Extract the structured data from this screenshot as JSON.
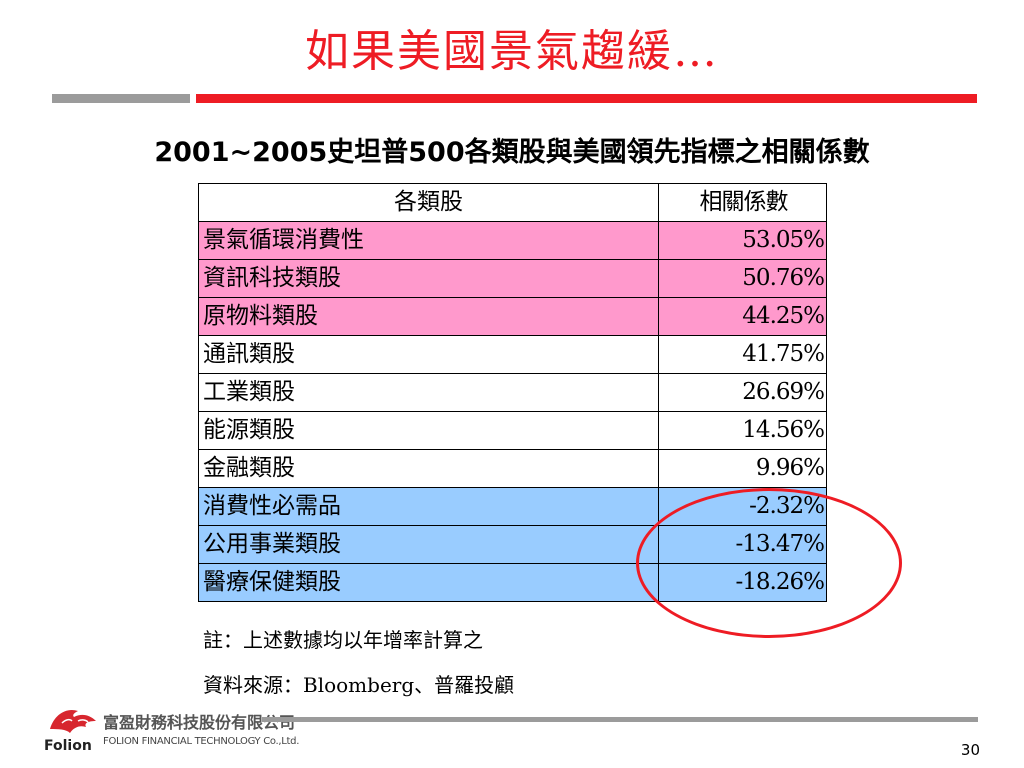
{
  "slide": {
    "title": "如果美國景氣趨緩…",
    "subtitle": "2001~2005史坦普500各類股與美國領先指標之相關係數"
  },
  "table": {
    "headers": [
      "各類股",
      "相關係數"
    ],
    "rows": [
      {
        "sector": "景氣循環消費性",
        "value": "53.05%",
        "highlight": "pink"
      },
      {
        "sector": "資訊科技類股",
        "value": "50.76%",
        "highlight": "pink"
      },
      {
        "sector": "原物料類股",
        "value": "44.25%",
        "highlight": "pink"
      },
      {
        "sector": "通訊類股",
        "value": "41.75%",
        "highlight": "white"
      },
      {
        "sector": "工業類股",
        "value": "26.69%",
        "highlight": "white"
      },
      {
        "sector": "能源類股",
        "value": "14.56%",
        "highlight": "white"
      },
      {
        "sector": "金融類股",
        "value": "9.96%",
        "highlight": "white"
      },
      {
        "sector": "消費性必需品",
        "value": "-2.32%",
        "highlight": "blue"
      },
      {
        "sector": "公用事業類股",
        "value": "-13.47%",
        "highlight": "blue"
      },
      {
        "sector": "醫療保健類股",
        "value": "-18.26%",
        "highlight": "blue"
      }
    ]
  },
  "notes": {
    "note": "註：上述數據均以年增率計算之",
    "source": "資料來源：Bloomberg、普羅投顧"
  },
  "footer": {
    "company_name": "富盈財務科技股份有限公司",
    "company_english": "FOLION FINANCIAL TECHNOLOGY Co.,Ltd.",
    "brand": "Folion",
    "page_number": "30"
  },
  "colors": {
    "accent_red": "#ee1c24",
    "pink": "#ff99cc",
    "blue": "#99ccff",
    "gray": "#9b9b9b"
  }
}
